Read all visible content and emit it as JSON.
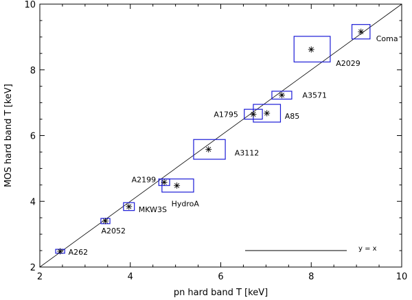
{
  "chart_data": {
    "type": "scatter",
    "xlabel": "pn hard band T [keV]",
    "ylabel": "MOS hard band T [keV]",
    "xlim": [
      2,
      10
    ],
    "ylim": [
      2,
      10
    ],
    "xticks": [
      2,
      4,
      6,
      8,
      10
    ],
    "yticks": [
      2,
      4,
      6,
      8,
      10
    ],
    "reference_line": {
      "label": "y = x",
      "slope": 1,
      "intercept": 0
    },
    "error_box_color": "#1a1ad6",
    "points": [
      {
        "name": "A262",
        "x": 2.45,
        "y": 2.48,
        "x_err": [
          0.1,
          0.1
        ],
        "y_err": [
          0.06,
          0.06
        ]
      },
      {
        "name": "A2052",
        "x": 3.45,
        "y": 3.4,
        "x_err": [
          0.1,
          0.1
        ],
        "y_err": [
          0.08,
          0.08
        ]
      },
      {
        "name": "MKW3S",
        "x": 3.97,
        "y": 3.84,
        "x_err": [
          0.12,
          0.12
        ],
        "y_err": [
          0.12,
          0.12
        ]
      },
      {
        "name": "A2199",
        "x": 4.75,
        "y": 4.58,
        "x_err": [
          0.12,
          0.12
        ],
        "y_err": [
          0.1,
          0.1
        ]
      },
      {
        "name": "HydroA",
        "x": 5.03,
        "y": 4.48,
        "x_err": [
          0.33,
          0.37
        ],
        "y_err": [
          0.2,
          0.2
        ]
      },
      {
        "name": "A3112",
        "x": 5.73,
        "y": 5.58,
        "x_err": [
          0.33,
          0.37
        ],
        "y_err": [
          0.3,
          0.3
        ]
      },
      {
        "name": "A1795",
        "x": 6.72,
        "y": 6.65,
        "x_err": [
          0.2,
          0.2
        ],
        "y_err": [
          0.15,
          0.15
        ]
      },
      {
        "name": "A85",
        "x": 7.02,
        "y": 6.68,
        "x_err": [
          0.3,
          0.3
        ],
        "y_err": [
          0.27,
          0.27
        ]
      },
      {
        "name": "A3571",
        "x": 7.35,
        "y": 7.23,
        "x_err": [
          0.22,
          0.22
        ],
        "y_err": [
          0.12,
          0.12
        ]
      },
      {
        "name": "A2029",
        "x": 8.0,
        "y": 8.62,
        "x_err": [
          0.38,
          0.42
        ],
        "y_err": [
          0.38,
          0.4
        ]
      },
      {
        "name": "Coma",
        "x": 9.1,
        "y": 9.16,
        "x_err": [
          0.2,
          0.2
        ],
        "y_err": [
          0.22,
          0.22
        ]
      }
    ]
  }
}
